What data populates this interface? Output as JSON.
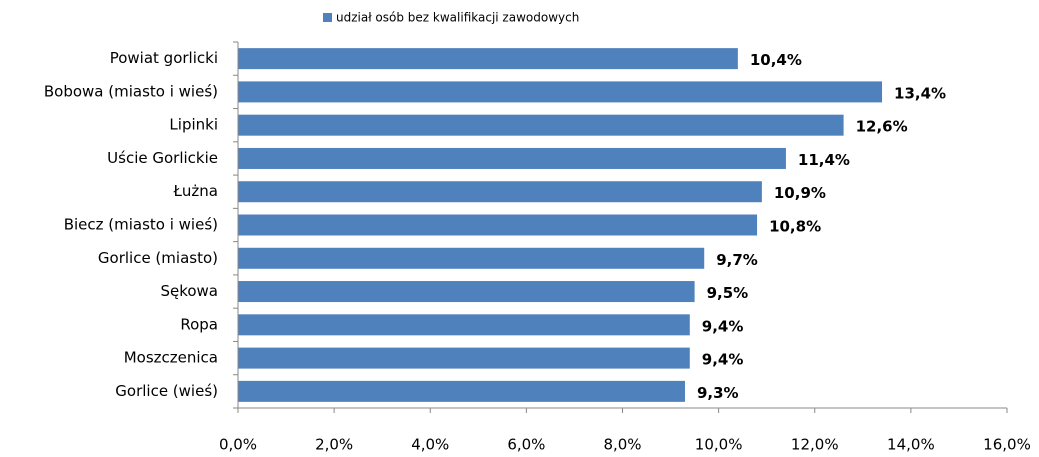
{
  "chart_data": {
    "type": "bar",
    "orientation": "horizontal",
    "legend": "top",
    "series": [
      {
        "name": "udział osób bez kwalifikacji zawodowych",
        "color": "#4f81bd",
        "values": [
          10.4,
          13.4,
          12.6,
          11.4,
          10.9,
          10.8,
          9.7,
          9.5,
          9.4,
          9.4,
          9.3
        ],
        "value_labels": [
          "10,4%",
          "13,4%",
          "12,6%",
          "11,4%",
          "10,9%",
          "10,8%",
          "9,7%",
          "9,5%",
          "9,4%",
          "9,4%",
          "9,3%"
        ]
      }
    ],
    "categories": [
      "Powiat gorlicki",
      "Bobowa (miasto  i wieś)",
      "Lipinki",
      "Uście Gorlickie",
      "Łużna",
      "Biecz (miasto  i wieś)",
      "Gorlice (miasto)",
      "Sękowa",
      "Ropa",
      "Moszczenica",
      "Gorlice (wieś)"
    ],
    "xlim": [
      0,
      16
    ],
    "xticks": [
      {
        "value": 0,
        "label": "0,0%"
      },
      {
        "value": 2,
        "label": "2,0%"
      },
      {
        "value": 4,
        "label": "4,0%"
      },
      {
        "value": 6,
        "label": "6,0%"
      },
      {
        "value": 8,
        "label": "8,0%"
      },
      {
        "value": 10,
        "label": "10,0%"
      },
      {
        "value": 12,
        "label": "12,0%"
      },
      {
        "value": 14,
        "label": "14,0%"
      },
      {
        "value": 16,
        "label": "16,0%"
      }
    ]
  }
}
